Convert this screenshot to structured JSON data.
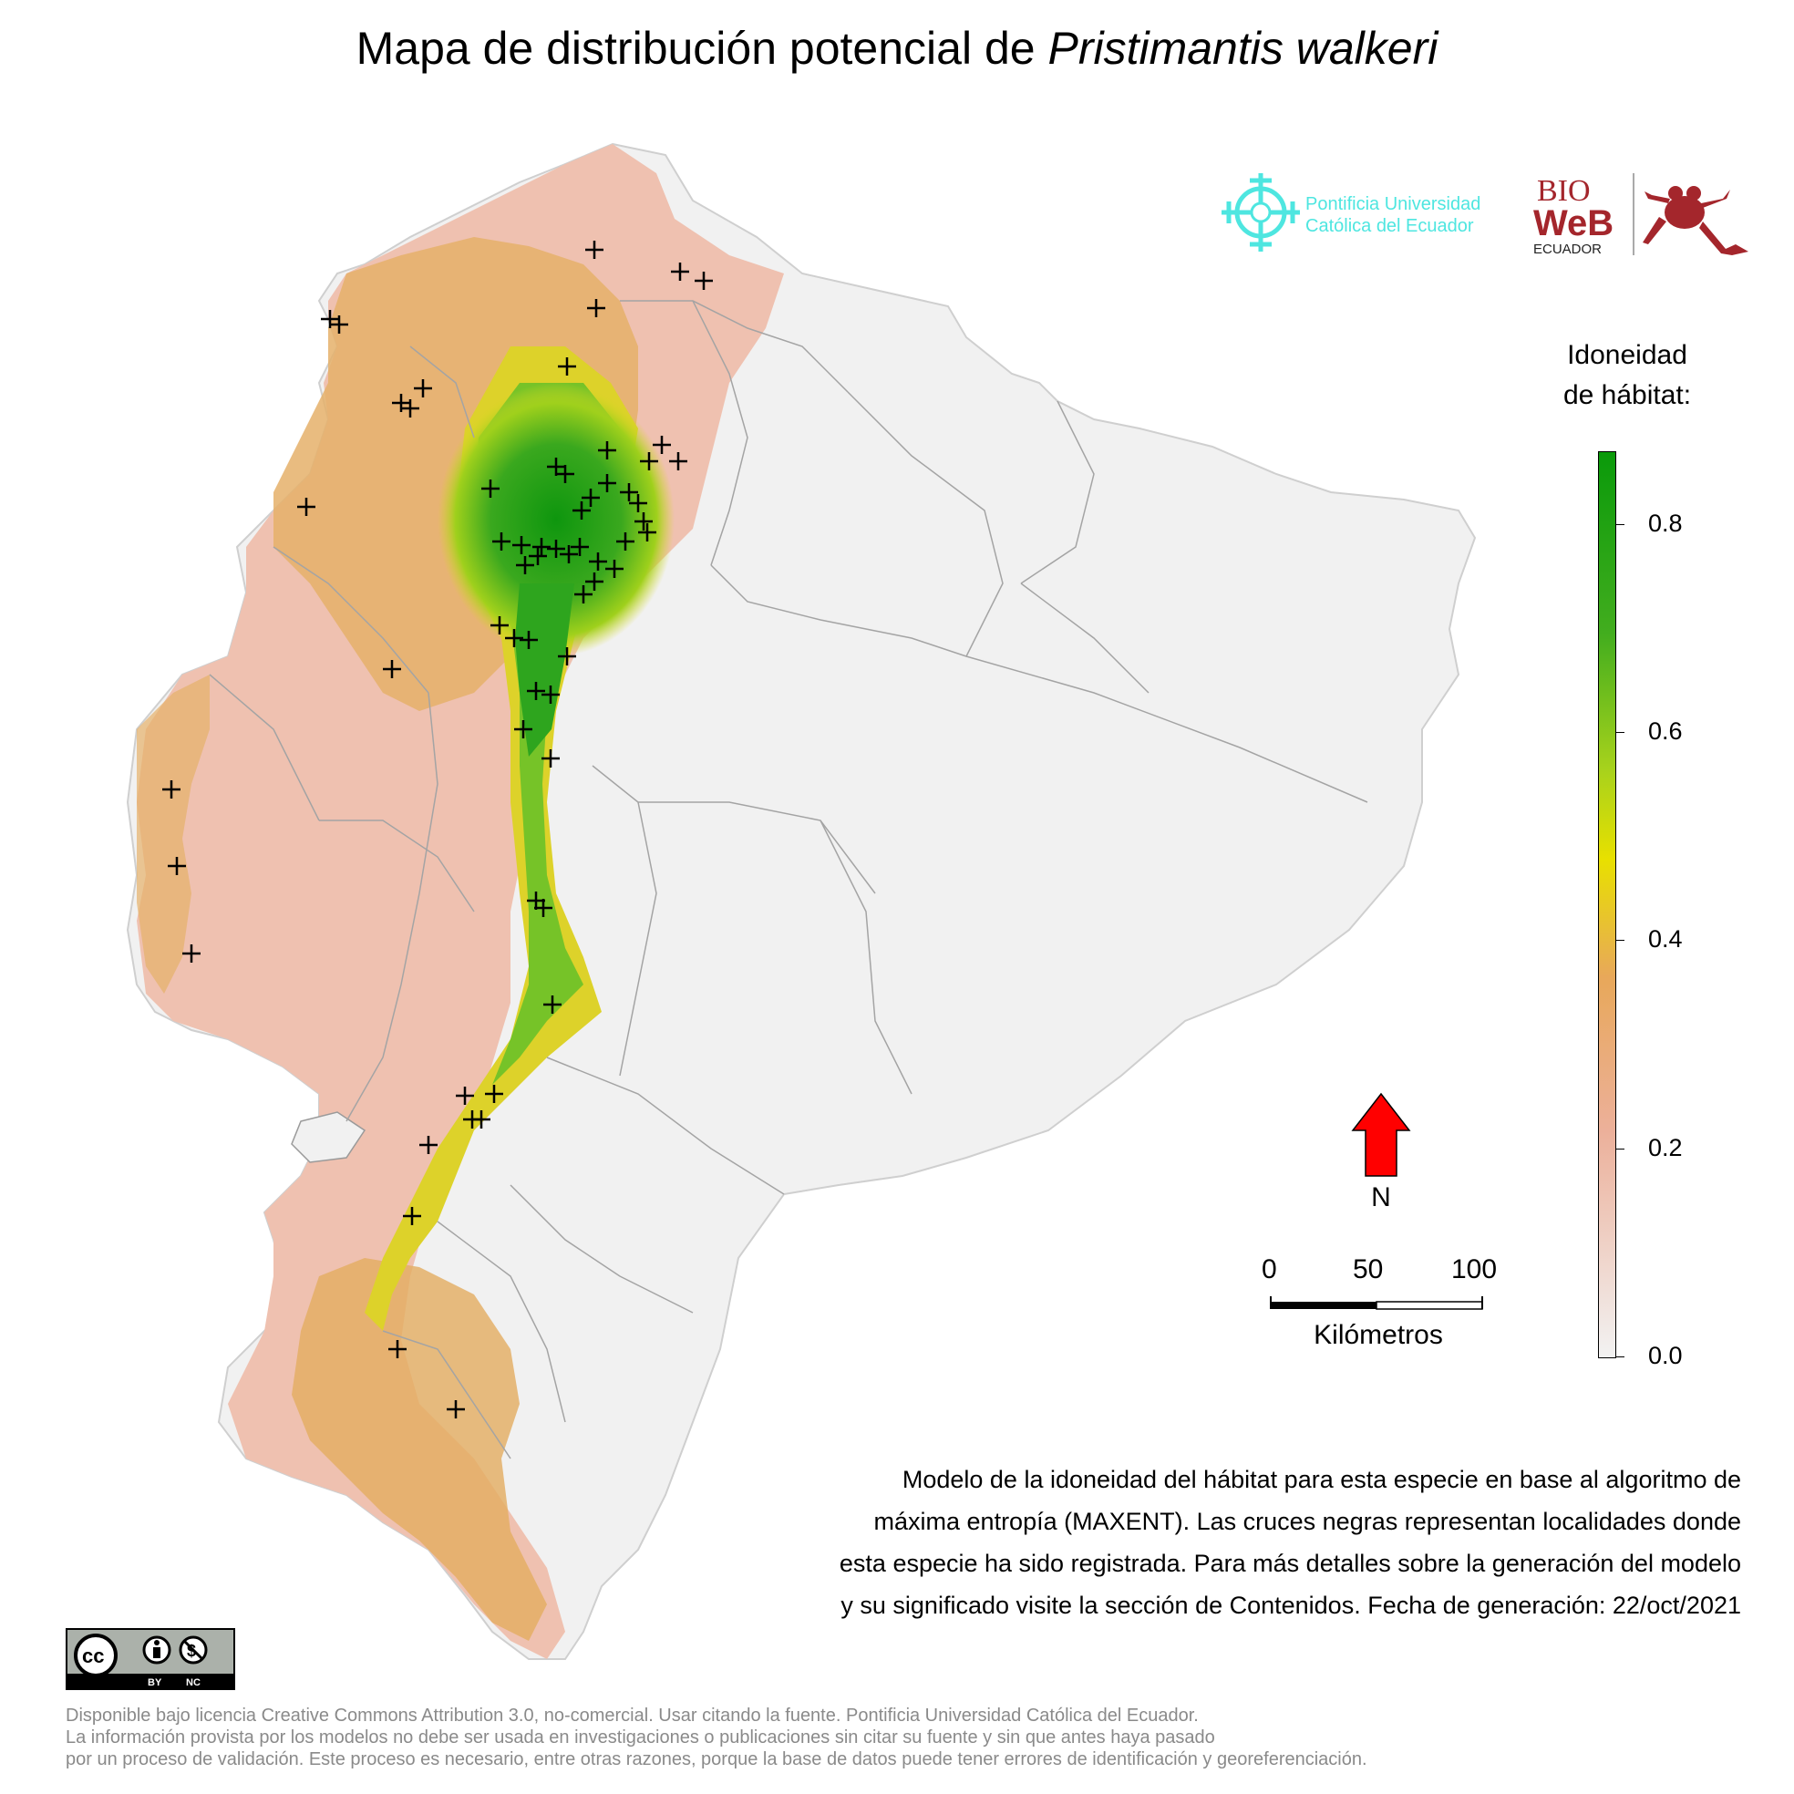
{
  "title": {
    "main": "Mapa de distribución potencial de ",
    "species": "Pristimantis walkeri"
  },
  "logos": {
    "puce_line1": "Pontificia Universidad",
    "puce_line2": "Católica del Ecuador",
    "bioweb_top": "BIO",
    "bioweb_mid": "WeB",
    "bioweb_bottom": "ECUADOR"
  },
  "legend": {
    "title_line1": "Idoneidad",
    "title_line2": "de hábitat:",
    "ticks": [
      "0.8",
      "0.6",
      "0.4",
      "0.2",
      "0.0"
    ],
    "tick_values": [
      0.8,
      0.6,
      0.4,
      0.2,
      0.0
    ],
    "max_value": 0.87,
    "colors": {
      "low": "#f2f2f2",
      "mid_low": "#ecb09a",
      "mid": "#e8a85a",
      "yellow": "#e8e000",
      "high": "#42ad1e",
      "max": "#0a9a0a"
    }
  },
  "north_arrow": {
    "label": "N",
    "color": "#ff0000"
  },
  "scale": {
    "labels": [
      "0",
      "50",
      "100"
    ],
    "unit": "Kilómetros"
  },
  "caption": {
    "lines": [
      "Modelo de la idoneidad del hábitat para esta especie en base al algoritmo de",
      "máxima entropía (MAXENT). Las cruces negras representan localidades donde",
      "esta especie ha sido registrada. Para más detalles sobre la generación del modelo",
      "y su significado visite la sección de Contenidos. Fecha de generación: 22/oct/2021"
    ]
  },
  "license": {
    "badge_by": "BY",
    "badge_nc": "NC",
    "footer_lines": [
      "Disponible bajo licencia Creative Commons Attribution 3.0, no-comercial. Usar citando la fuente. Pontificia Universidad Católica del Ecuador.",
      "La información provista por los modelos no debe ser usada en investigaciones o publicaciones sin citar su fuente y sin que antes haya pasado",
      "por un proceso de validación. Este proceso es necesario, entre otras razones, porque la base de datos puede tener errores de identificación y georeferenciación."
    ]
  },
  "map_colors": {
    "background_region": "#f1f1f1",
    "coast_low": "#f0c8b8",
    "lowland": "#e8b070",
    "andes_yellow": "#e0d030",
    "andes_green": "#7cc52a",
    "core_green": "#1f9e1a",
    "borders": "#9a9a9a",
    "records": "#000000"
  }
}
